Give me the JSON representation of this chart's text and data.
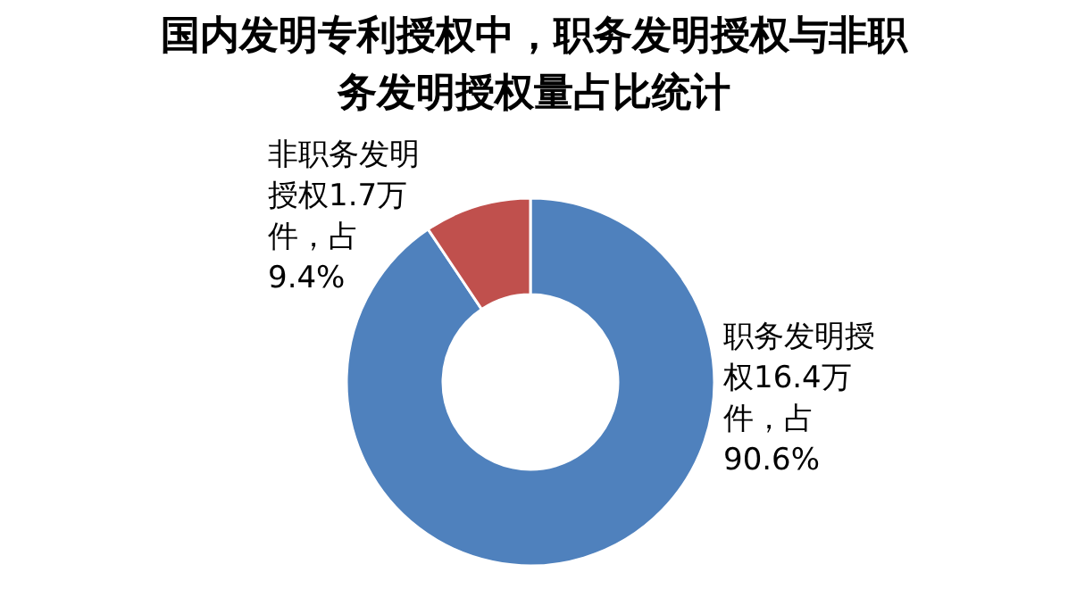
{
  "chart_data": {
    "type": "donut",
    "title": "国内发明专利授权中，职务发明授权与非职务发明授权量占比统计",
    "categories": [
      "职务发明授权16.4万件，占90.6%",
      "非职务发明授权1.7万件，占9.4%"
    ],
    "values": [
      16.4,
      1.7
    ],
    "colors": [
      "#4f81bd",
      "#c0504d"
    ],
    "legend": false
  }
}
